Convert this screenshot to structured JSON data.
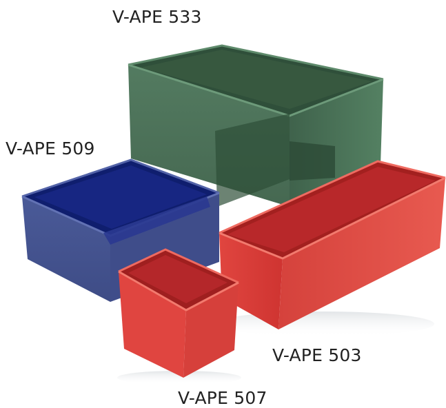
{
  "labels": {
    "green_box": "V-APE 533",
    "blue_box": "V-APE 509",
    "red_long_box": "V-APE 503",
    "red_small_box": "V-APE 507"
  },
  "colors": {
    "green": "#3f6b4e",
    "blue": "#3a4a8c",
    "red": "#d93a37",
    "background": "#ffffff"
  }
}
